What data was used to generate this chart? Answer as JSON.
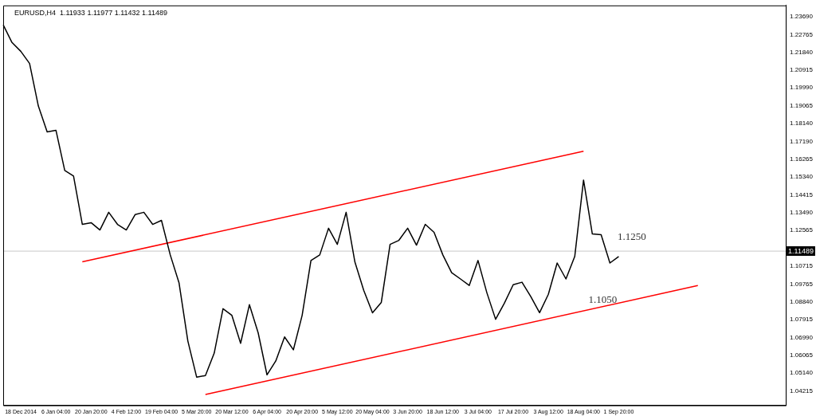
{
  "chart_data": {
    "type": "line",
    "title": "EURUSD,H4  1.11933 1.11977 1.11432 1.11489",
    "categories": [
      null,
      null,
      "18 Dec 2014",
      null,
      null,
      null,
      "6 Jan 04:00",
      null,
      null,
      null,
      "20 Jan 20:00",
      null,
      null,
      null,
      "4 Feb 12:00",
      null,
      null,
      null,
      "19 Feb 04:00",
      null,
      null,
      null,
      "5 Mar 20:00",
      null,
      null,
      null,
      "20 Mar 12:00",
      null,
      null,
      null,
      "6 Apr 04:00",
      null,
      null,
      null,
      "20 Apr 20:00",
      null,
      null,
      null,
      "5 May 12:00",
      null,
      null,
      null,
      "20 May 04:00",
      null,
      null,
      null,
      "3 Jun 20:00",
      null,
      null,
      null,
      "18 Jun 12:00",
      null,
      null,
      null,
      "3 Jul 04:00",
      null,
      null,
      null,
      "17 Jul 20:00",
      null,
      null,
      null,
      "3 Aug 12:00",
      null,
      null,
      null,
      "18 Aug 04:00",
      null,
      null,
      null,
      "1 Sep 20:00",
      null,
      null,
      null,
      null,
      null,
      null,
      null,
      null,
      null,
      null,
      null,
      null,
      null,
      null,
      null,
      null,
      null,
      null,
      null
    ],
    "series": [
      {
        "color": "#000000",
        "values": [
          1.2327,
          1.2235,
          1.2189,
          1.2126,
          1.1904,
          1.177,
          1.1778,
          1.1569,
          1.154,
          1.1288,
          1.1297,
          1.1259,
          1.1351,
          1.1288,
          1.1259,
          1.1339,
          1.1351,
          1.1288,
          1.1309,
          1.1129,
          1.0983,
          1.0681,
          1.0493,
          1.0501,
          1.0618,
          1.0849,
          1.0815,
          1.0669,
          1.087,
          1.0723,
          1.0505,
          1.0577,
          1.0702,
          1.0635,
          1.0815,
          1.11,
          1.1129,
          1.1268,
          1.1184,
          1.1351,
          1.1092,
          1.0945,
          1.0828,
          1.0882,
          1.1184,
          1.1205,
          1.1268,
          1.118,
          1.1288,
          1.1247,
          1.1129,
          1.1037,
          1.1004,
          1.097,
          1.11,
          1.0933,
          1.0794,
          1.0878,
          1.0974,
          1.0987,
          1.0912,
          1.0828,
          1.0924,
          1.1087,
          1.1004,
          1.1121,
          1.1519,
          1.1238,
          1.1234,
          1.1087,
          1.1121,
          null,
          null,
          null,
          null,
          null,
          null,
          null,
          null,
          null,
          null,
          null,
          null,
          null,
          null,
          null,
          null,
          null,
          null,
          null
        ]
      },
      {
        "type": "line",
        "color": "#ff0000",
        "values": [
          null,
          null,
          null,
          null,
          null,
          null,
          null,
          null,
          null,
          1.1093,
          null,
          null,
          null,
          null,
          null,
          null,
          null,
          null,
          null,
          null,
          null,
          null,
          null,
          null,
          null,
          null,
          null,
          null,
          null,
          null,
          null,
          null,
          null,
          null,
          null,
          null,
          null,
          null,
          null,
          null,
          null,
          null,
          null,
          null,
          null,
          null,
          null,
          null,
          null,
          null,
          null,
          null,
          null,
          null,
          null,
          null,
          null,
          null,
          null,
          null,
          null,
          null,
          null,
          null,
          null,
          null,
          1.1669,
          null,
          null,
          null,
          null,
          null,
          null,
          null,
          null,
          null,
          null,
          null,
          null,
          null,
          null,
          null,
          null,
          null,
          null,
          null,
          null,
          null,
          null,
          null
        ]
      },
      {
        "type": "line",
        "color": "#ff0000",
        "values": [
          null,
          null,
          null,
          null,
          null,
          null,
          null,
          null,
          null,
          null,
          null,
          null,
          null,
          null,
          null,
          null,
          null,
          null,
          null,
          null,
          null,
          null,
          null,
          1.0402,
          null,
          null,
          null,
          null,
          null,
          null,
          null,
          null,
          null,
          null,
          null,
          null,
          null,
          null,
          null,
          null,
          null,
          null,
          null,
          null,
          null,
          null,
          null,
          null,
          null,
          null,
          null,
          null,
          null,
          null,
          null,
          null,
          null,
          null,
          null,
          null,
          null,
          null,
          null,
          null,
          null,
          null,
          null,
          null,
          null,
          null,
          null,
          null,
          null,
          null,
          null,
          null,
          null,
          null,
          null,
          1.097,
          null,
          null,
          null,
          null,
          null,
          null,
          null,
          null,
          null,
          null
        ]
      }
    ],
    "ylim": [
      1.0346,
      1.2428
    ],
    "yticks": [
      {
        "value": 1.2369,
        "label": "1.23690"
      },
      {
        "value": 1.22765,
        "label": "1.22765"
      },
      {
        "value": 1.2184,
        "label": "1.21840"
      },
      {
        "value": 1.20915,
        "label": "1.20915"
      },
      {
        "value": 1.1999,
        "label": "1.19990"
      },
      {
        "value": 1.19065,
        "label": "1.19065"
      },
      {
        "value": 1.1814,
        "label": "1.18140"
      },
      {
        "value": 1.1719,
        "label": "1.17190"
      },
      {
        "value": 1.16265,
        "label": "1.16265"
      },
      {
        "value": 1.1534,
        "label": "1.15340"
      },
      {
        "value": 1.14415,
        "label": "1.14415"
      },
      {
        "value": 1.1349,
        "label": "1.13490"
      },
      {
        "value": 1.12565,
        "label": "1.12565"
      },
      {
        "value": 1.10715,
        "label": "1.10715"
      },
      {
        "value": 1.09765,
        "label": "1.09765"
      },
      {
        "value": 1.0884,
        "label": "1.08840"
      },
      {
        "value": 1.07915,
        "label": "1.07915"
      },
      {
        "value": 1.0699,
        "label": "1.06990"
      },
      {
        "value": 1.06065,
        "label": "1.06065"
      },
      {
        "value": 1.0514,
        "label": "1.05140"
      },
      {
        "value": 1.04215,
        "label": "1.04215"
      }
    ],
    "ref_lines": [
      {
        "axis": "y",
        "value": 1.11489,
        "label": "1.11489",
        "color": "#c8c8c8"
      }
    ],
    "annotations": [
      "1.1250",
      "1.1050"
    ]
  }
}
